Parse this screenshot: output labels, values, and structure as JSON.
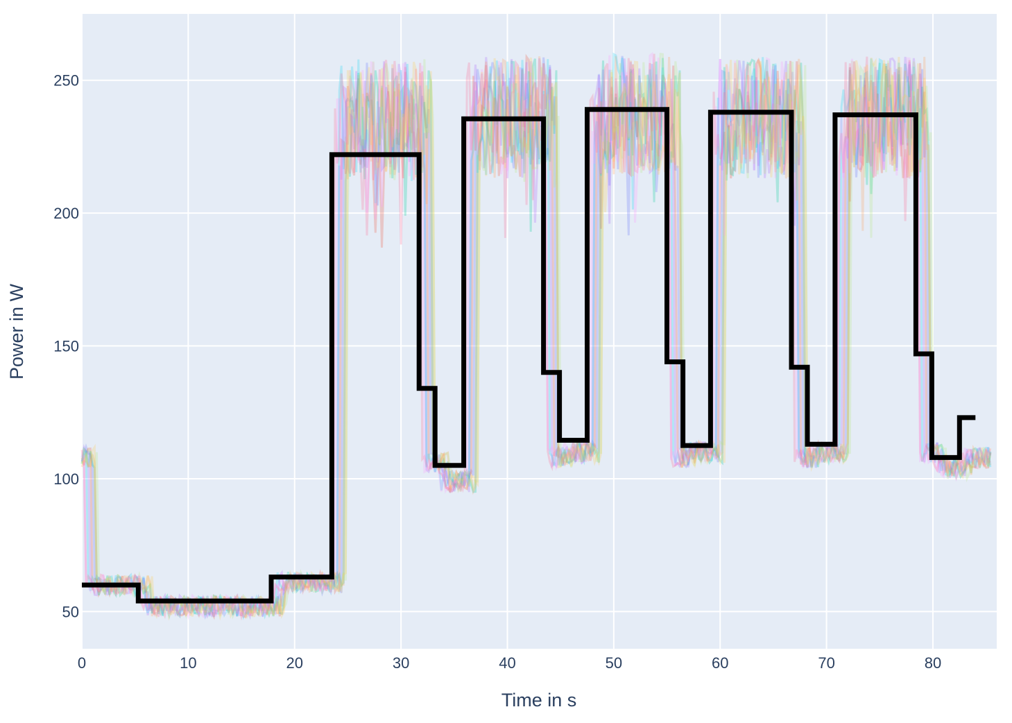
{
  "chart_data": {
    "type": "line",
    "title": "",
    "xlabel": "Time in s",
    "ylabel": "Power in W",
    "xlim": [
      0,
      86
    ],
    "ylim": [
      36,
      275
    ],
    "x_ticks": [
      0,
      10,
      20,
      30,
      40,
      50,
      60,
      70,
      80
    ],
    "y_ticks": [
      50,
      100,
      150,
      200,
      250
    ],
    "grid": true,
    "legend": "none",
    "colors": {
      "plot_background": "#e5ecf6",
      "grid": "#ffffff",
      "main_line": "#000000",
      "text": "#2a3f5f",
      "background_traces": [
        "#636efa",
        "#ef553b",
        "#00cc96",
        "#ab63fa",
        "#ffa15a",
        "#19d3f3",
        "#ff6692",
        "#b6e880",
        "#ff97ff",
        "#fecb52"
      ]
    },
    "main_series": {
      "style": "step",
      "x": [
        0,
        5.3,
        5.3,
        17.8,
        17.8,
        23.5,
        23.5,
        31.7,
        31.7,
        33.2,
        33.2,
        35.9,
        35.9,
        43.4,
        43.4,
        44.9,
        44.9,
        47.5,
        47.5,
        55.0,
        55.0,
        56.5,
        56.5,
        59.1,
        59.1,
        66.7,
        66.7,
        68.2,
        68.2,
        70.8,
        70.8,
        78.4,
        78.4,
        79.9,
        79.9,
        82.5,
        82.5,
        84.0
      ],
      "y": [
        60,
        60,
        54,
        54,
        63,
        63,
        222,
        222,
        134,
        134,
        105,
        105,
        235.5,
        235.5,
        140,
        140,
        114.5,
        114.5,
        239,
        239,
        144,
        144,
        112.5,
        112.5,
        238,
        238,
        142,
        142,
        113,
        113,
        237,
        237,
        147,
        147,
        108,
        108,
        123,
        123
      ]
    },
    "background_traces": {
      "count": 10,
      "opacity": 0.25,
      "description_levels": [
        {
          "from": 0,
          "to": 5.3,
          "level": 60
        },
        {
          "from": 5.3,
          "to": 17.8,
          "level": 52
        },
        {
          "from": 17.8,
          "to": 23.5,
          "level": 61
        },
        {
          "from": 23.5,
          "to": 31.7,
          "level": 235
        },
        {
          "from": 31.7,
          "to": 33.2,
          "level": 106
        },
        {
          "from": 33.2,
          "to": 35.9,
          "level": 99
        },
        {
          "from": 35.9,
          "to": 43.4,
          "level": 236
        },
        {
          "from": 43.4,
          "to": 44.9,
          "level": 108
        },
        {
          "from": 44.9,
          "to": 47.5,
          "level": 110
        },
        {
          "from": 47.5,
          "to": 55.0,
          "level": 237
        },
        {
          "from": 55.0,
          "to": 56.5,
          "level": 108
        },
        {
          "from": 56.5,
          "to": 59.1,
          "level": 110
        },
        {
          "from": 59.1,
          "to": 66.7,
          "level": 236
        },
        {
          "from": 66.7,
          "to": 68.2,
          "level": 108
        },
        {
          "from": 68.2,
          "to": 70.8,
          "level": 110
        },
        {
          "from": 70.8,
          "to": 78.4,
          "level": 236
        },
        {
          "from": 78.4,
          "to": 79.9,
          "level": 110
        },
        {
          "from": 79.9,
          "to": 82.5,
          "level": 104
        },
        {
          "from": 82.5,
          "to": 86,
          "level": 108
        }
      ]
    }
  }
}
